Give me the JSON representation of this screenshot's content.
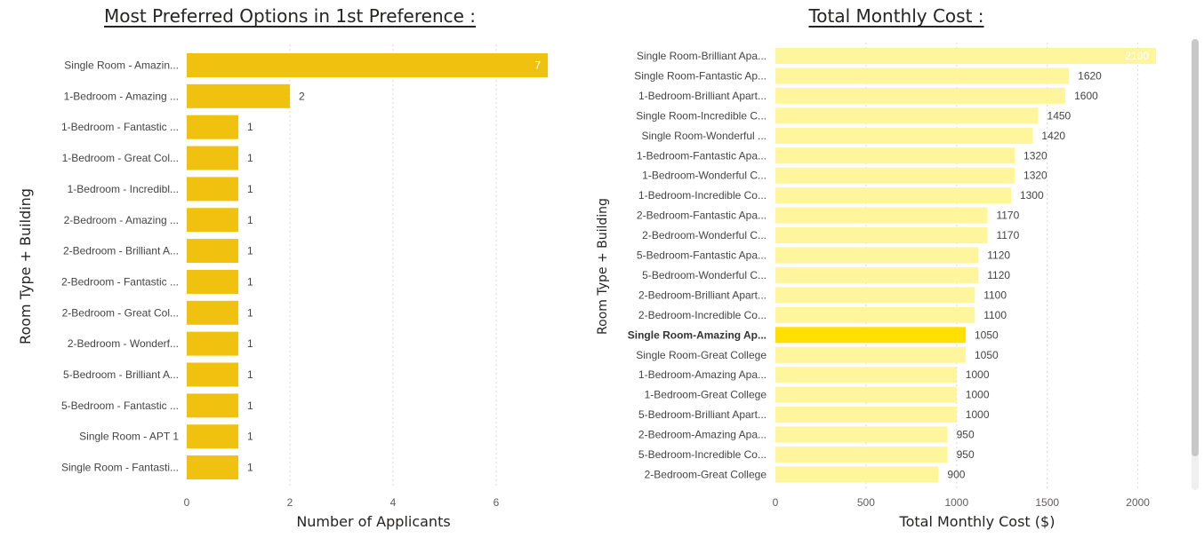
{
  "colors": {
    "left_bar": "#f0c20f",
    "right_bar": "#fff59d",
    "right_highlight": "#ffe000",
    "grid": "#d9d9d9"
  },
  "chart_data": [
    {
      "type": "bar",
      "orientation": "horizontal",
      "title": "Most Preferred Options in 1st Preference :",
      "xlabel": "Number of Applicants",
      "ylabel": "Room Type + Building",
      "xlim": [
        0,
        7
      ],
      "xticks": [
        "0",
        "2",
        "4",
        "6"
      ],
      "grid": true,
      "categories": [
        "Single Room - Amazin...",
        "1-Bedroom - Amazing ...",
        "1-Bedroom - Fantastic ...",
        "1-Bedroom - Great Col...",
        "1-Bedroom - Incredibl...",
        "2-Bedroom - Amazing ...",
        "2-Bedroom - Brilliant A...",
        "2-Bedroom - Fantastic ...",
        "2-Bedroom - Great Col...",
        "2-Bedroom - Wonderf...",
        "5-Bedroom - Brilliant A...",
        "5-Bedroom - Fantastic ...",
        "Single Room - APT 1",
        "Single Room - Fantasti..."
      ],
      "values": [
        7,
        2,
        1,
        1,
        1,
        1,
        1,
        1,
        1,
        1,
        1,
        1,
        1,
        1
      ]
    },
    {
      "type": "bar",
      "orientation": "horizontal",
      "title": "Total Monthly Cost :",
      "xlabel": "Total Monthly Cost ($)",
      "ylabel": "Room Type + Building",
      "xlim": [
        0,
        2100
      ],
      "xticks": [
        "0",
        "500",
        "1000",
        "1500",
        "2000"
      ],
      "grid": true,
      "highlight_category": "Single Room-Amazing Ap...",
      "categories": [
        "Single Room-Brilliant Apa...",
        "Single Room-Fantastic Ap...",
        "1-Bedroom-Brilliant Apart...",
        "Single Room-Incredible C...",
        "Single Room-Wonderful ...",
        "1-Bedroom-Fantastic Apa...",
        "1-Bedroom-Wonderful C...",
        "1-Bedroom-Incredible Co...",
        "2-Bedroom-Fantastic Apa...",
        "2-Bedroom-Wonderful C...",
        "5-Bedroom-Fantastic Apa...",
        "5-Bedroom-Wonderful C...",
        "2-Bedroom-Brilliant Apart...",
        "2-Bedroom-Incredible Co...",
        "Single Room-Amazing Ap...",
        "Single Room-Great College",
        "1-Bedroom-Amazing Apa...",
        "1-Bedroom-Great College",
        "5-Bedroom-Brilliant Apart...",
        "2-Bedroom-Amazing Apa...",
        "5-Bedroom-Incredible Co...",
        "2-Bedroom-Great College"
      ],
      "values": [
        2100,
        1620,
        1600,
        1450,
        1420,
        1320,
        1320,
        1300,
        1170,
        1170,
        1120,
        1120,
        1100,
        1100,
        1050,
        1050,
        1000,
        1000,
        1000,
        950,
        950,
        900
      ]
    }
  ]
}
